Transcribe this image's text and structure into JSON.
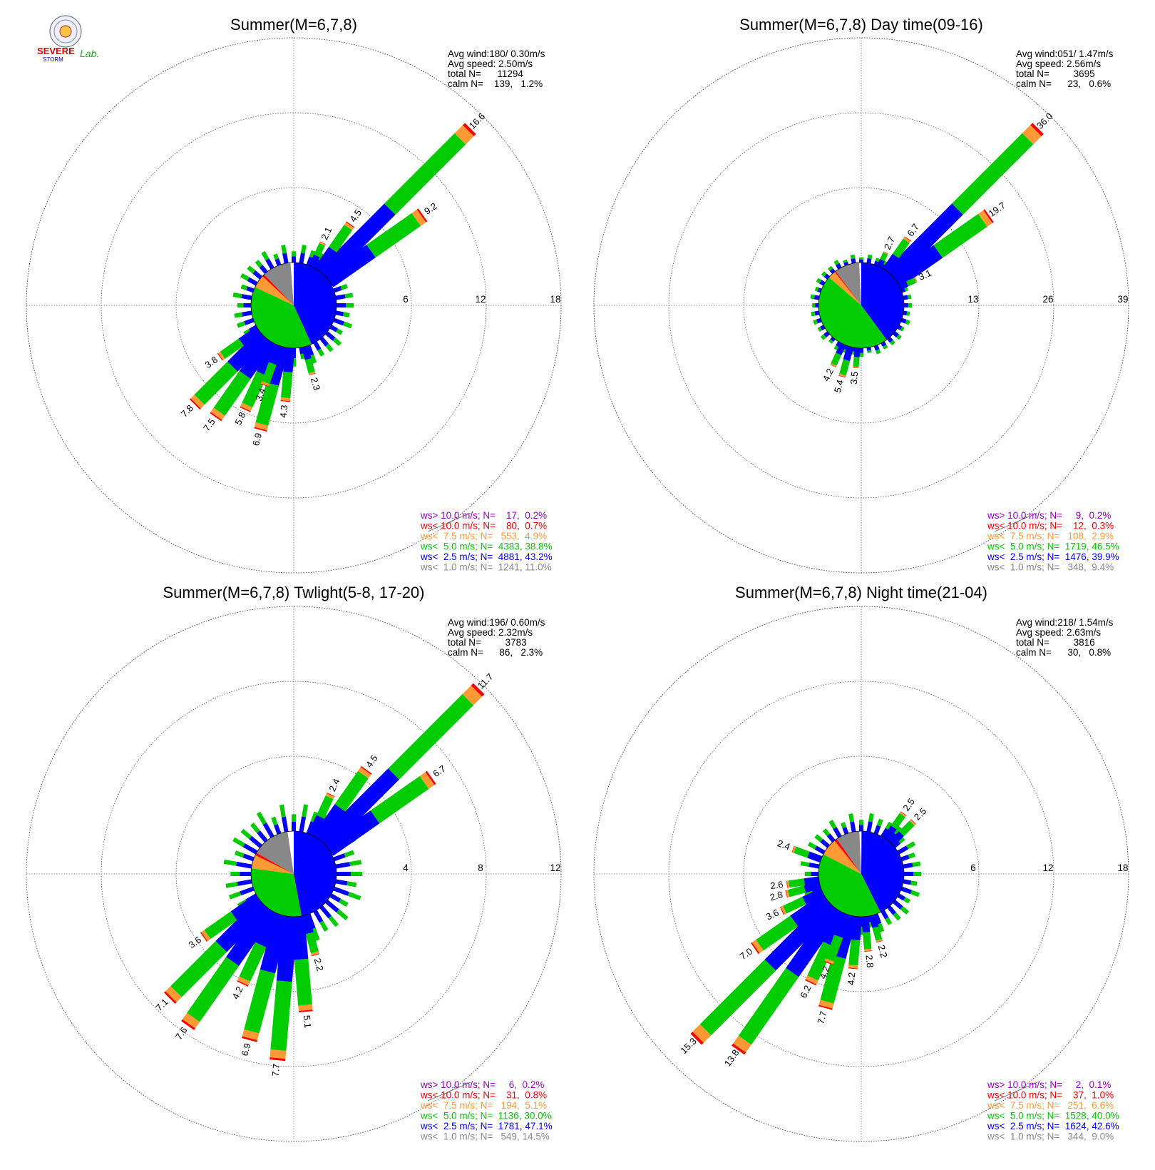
{
  "logo": {
    "text_top": "SEVERE",
    "text_bottom": "STORM",
    "text_lab": "Lab."
  },
  "colors": {
    "purple": "#9900cc",
    "red": "#ff0000",
    "orange": "#ff9933",
    "green": "#00cc00",
    "blue": "#0000ff",
    "gray": "#888888",
    "calm": "#ffffff"
  },
  "legend_thresholds": [
    "ws> 10.0 m/s; N=",
    "ws< 10.0 m/s; N=",
    "ws<  7.5 m/s; N=",
    "ws<  5.0 m/s; N=",
    "ws<  2.5 m/s; N=",
    "ws<  1.0 m/s; N="
  ],
  "chart_data": [
    {
      "type": "polar-bar",
      "title": "Summer(M=6,7,8)",
      "stats": [
        "Avg wind:180/ 0.30m/s",
        "Avg speed: 2.50m/s",
        "total N=      11294",
        "calm N=    139,   1.2%"
      ],
      "rmax": 18,
      "ticks": [
        "6",
        "12",
        "18"
      ],
      "bars": [
        {
          "dir": 45,
          "total": 16.6,
          "label": "16.6"
        },
        {
          "dir": 55,
          "total": 9.2,
          "label": "9.2"
        },
        {
          "dir": 35,
          "total": 4.5,
          "label": "4.5"
        },
        {
          "dir": 25,
          "total": 2.1,
          "label": "2.1"
        },
        {
          "dir": 225,
          "total": 7.8,
          "label": "7.8"
        },
        {
          "dir": 215,
          "total": 7.5,
          "label": "7.5"
        },
        {
          "dir": 235,
          "total": 3.8,
          "label": "3.8"
        },
        {
          "dir": 205,
          "total": 5.8,
          "label": "5.8"
        },
        {
          "dir": 195,
          "total": 6.9,
          "label": "6.9"
        },
        {
          "dir": 185,
          "total": 4.3,
          "label": "4.3"
        },
        {
          "dir": 165,
          "total": 2.3,
          "label": "2.3"
        },
        {
          "dir": 200,
          "total": 3.4,
          "label": "3.4"
        }
      ],
      "pie": [
        0.432,
        0.388,
        0.049,
        0.009,
        0.11,
        0.012
      ],
      "legend": [
        [
          "17",
          "0.2%"
        ],
        [
          "80",
          "0.7%"
        ],
        [
          "553",
          "4.9%"
        ],
        [
          "4383",
          "38.8%"
        ],
        [
          "4881",
          "43.2%"
        ],
        [
          "1241",
          "11.0%"
        ]
      ]
    },
    {
      "type": "polar-bar",
      "title": "Summer(M=6,7,8) Day time(09-16)",
      "stats": [
        "Avg wind:051/ 1.47m/s",
        "Avg speed: 2.56m/s",
        "total N=         3695",
        "calm N=      23,   0.6%"
      ],
      "rmax": 39,
      "ticks": [
        "13",
        "26",
        "39"
      ],
      "bars": [
        {
          "dir": 45,
          "total": 36.0,
          "label": "36.0"
        },
        {
          "dir": 55,
          "total": 19.7,
          "label": "19.7"
        },
        {
          "dir": 35,
          "total": 6.7,
          "label": "6.7"
        },
        {
          "dir": 25,
          "total": 2.7,
          "label": "2.7"
        },
        {
          "dir": 65,
          "total": 3.1,
          "label": "3.1"
        },
        {
          "dir": 195,
          "total": 5.4,
          "label": "5.4"
        },
        {
          "dir": 205,
          "total": 4.2,
          "label": "4.2"
        },
        {
          "dir": 185,
          "total": 3.5,
          "label": "3.5"
        }
      ],
      "pie": [
        0.399,
        0.465,
        0.029,
        0.005,
        0.094,
        0.006
      ],
      "legend": [
        [
          "9",
          "0.2%"
        ],
        [
          "12",
          "0.3%"
        ],
        [
          "108",
          "2.9%"
        ],
        [
          "1719",
          "46.5%"
        ],
        [
          "1476",
          "39.9%"
        ],
        [
          "348",
          "9.4%"
        ]
      ]
    },
    {
      "type": "polar-bar",
      "title": "Summer(M=6,7,8) Twlight(5-8, 17-20)",
      "stats": [
        "Avg wind:196/ 0.60m/s",
        "Avg speed: 2.32m/s",
        "total N=         3783",
        "calm N=      86,   2.3%"
      ],
      "rmax": 12,
      "ticks": [
        "4",
        "8",
        "12"
      ],
      "bars": [
        {
          "dir": 45,
          "total": 11.7,
          "label": "11.7"
        },
        {
          "dir": 55,
          "total": 6.7,
          "label": "6.7"
        },
        {
          "dir": 35,
          "total": 4.5,
          "label": "4.5"
        },
        {
          "dir": 25,
          "total": 2.4,
          "label": "2.4"
        },
        {
          "dir": 225,
          "total": 7.1,
          "label": "7.1"
        },
        {
          "dir": 215,
          "total": 7.6,
          "label": "7.6"
        },
        {
          "dir": 235,
          "total": 3.6,
          "label": "3.6"
        },
        {
          "dir": 205,
          "total": 4.2,
          "label": "4.2"
        },
        {
          "dir": 195,
          "total": 6.9,
          "label": "6.9"
        },
        {
          "dir": 185,
          "total": 7.7,
          "label": "7.7"
        },
        {
          "dir": 175,
          "total": 5.1,
          "label": "5.1"
        },
        {
          "dir": 165,
          "total": 2.2,
          "label": "2.2"
        }
      ],
      "pie": [
        0.471,
        0.3,
        0.051,
        0.01,
        0.145,
        0.023
      ],
      "legend": [
        [
          "6",
          "0.2%"
        ],
        [
          "31",
          "0.8%"
        ],
        [
          "194",
          "5.1%"
        ],
        [
          "1136",
          "30.0%"
        ],
        [
          "1781",
          "47.1%"
        ],
        [
          "549",
          "14.5%"
        ]
      ]
    },
    {
      "type": "polar-bar",
      "title": "Summer(M=6,7,8) Night time(21-04)",
      "stats": [
        "Avg wind:218/ 1.54m/s",
        "Avg speed: 2.63m/s",
        "total N=         3816",
        "calm N=      30,   0.8%"
      ],
      "rmax": 18,
      "ticks": [
        "6",
        "12",
        "18"
      ],
      "bars": [
        {
          "dir": 225,
          "total": 15.3,
          "label": "15.3"
        },
        {
          "dir": 215,
          "total": 13.8,
          "label": "13.8"
        },
        {
          "dir": 235,
          "total": 7.0,
          "label": "7.0"
        },
        {
          "dir": 195,
          "total": 7.7,
          "label": "7.7"
        },
        {
          "dir": 205,
          "total": 6.2,
          "label": "6.2"
        },
        {
          "dir": 185,
          "total": 4.2,
          "label": "4.2"
        },
        {
          "dir": 200,
          "total": 4.2,
          "label": "4.2"
        },
        {
          "dir": 175,
          "total": 2.8,
          "label": "2.8"
        },
        {
          "dir": 165,
          "total": 2.2,
          "label": "2.2"
        },
        {
          "dir": 245,
          "total": 3.6,
          "label": "3.6"
        },
        {
          "dir": 255,
          "total": 2.8,
          "label": "2.8"
        },
        {
          "dir": 262,
          "total": 2.6,
          "label": "2.6"
        },
        {
          "dir": 290,
          "total": 2.4,
          "label": "2.4"
        },
        {
          "dir": 35,
          "total": 2.5,
          "label": "2.5"
        },
        {
          "dir": 45,
          "total": 2.5,
          "label": "2.5"
        }
      ],
      "pie": [
        0.426,
        0.4,
        0.066,
        0.011,
        0.09,
        0.008
      ],
      "legend": [
        [
          "2",
          "0.1%"
        ],
        [
          "37",
          "1.0%"
        ],
        [
          "251",
          "6.6%"
        ],
        [
          "1528",
          "40.0%"
        ],
        [
          "1624",
          "42.6%"
        ],
        [
          "344",
          "9.0%"
        ]
      ]
    }
  ]
}
